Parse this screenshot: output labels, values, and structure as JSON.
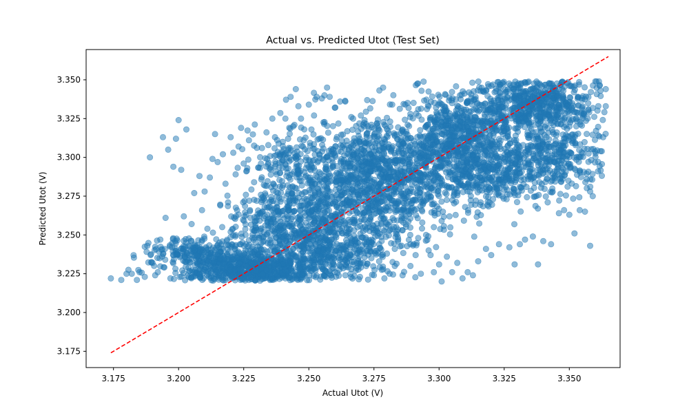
{
  "chart_data": {
    "type": "scatter",
    "title": "Actual vs. Predicted Utot (Test Set)",
    "xlabel": "Actual Utot (V)",
    "ylabel": "Predicted Utot (V)",
    "xlim": [
      3.1645,
      3.3695
    ],
    "ylim": [
      3.1645,
      3.3695
    ],
    "xticks": [
      3.175,
      3.2,
      3.225,
      3.25,
      3.275,
      3.3,
      3.325,
      3.35
    ],
    "yticks": [
      3.175,
      3.2,
      3.225,
      3.25,
      3.275,
      3.3,
      3.325,
      3.35
    ],
    "xtick_labels": [
      "3.175",
      "3.200",
      "3.225",
      "3.250",
      "3.275",
      "3.300",
      "3.325",
      "3.350"
    ],
    "ytick_labels": [
      "3.175",
      "3.200",
      "3.225",
      "3.250",
      "3.275",
      "3.300",
      "3.325",
      "3.350"
    ],
    "grid": false,
    "point_color": "#1f77b4",
    "point_alpha": 0.5,
    "reference_line": {
      "x": [
        3.174,
        3.365
      ],
      "y": [
        3.174,
        3.365
      ],
      "color": "#ff0000",
      "style": "dashed"
    },
    "series": [
      {
        "points": [
          [
            3.174,
            3.222
          ],
          [
            3.178,
            3.221
          ],
          [
            3.18,
            3.225
          ],
          [
            3.182,
            3.225
          ],
          [
            3.184,
            3.221
          ],
          [
            3.185,
            3.226
          ],
          [
            3.187,
            3.223
          ],
          [
            3.188,
            3.243
          ],
          [
            3.189,
            3.3
          ],
          [
            3.19,
            3.232
          ],
          [
            3.191,
            3.224
          ],
          [
            3.192,
            3.226
          ],
          [
            3.193,
            3.247
          ],
          [
            3.194,
            3.313
          ],
          [
            3.195,
            3.261
          ],
          [
            3.196,
            3.305
          ],
          [
            3.198,
            3.294
          ],
          [
            3.199,
            3.312
          ],
          [
            3.2,
            3.324
          ],
          [
            3.201,
            3.292
          ],
          [
            3.202,
            3.262
          ],
          [
            3.203,
            3.318
          ],
          [
            3.205,
            3.257
          ],
          [
            3.206,
            3.277
          ],
          [
            3.208,
            3.288
          ],
          [
            3.209,
            3.266
          ],
          [
            3.21,
            3.278
          ],
          [
            3.212,
            3.287
          ],
          [
            3.213,
            3.299
          ],
          [
            3.214,
            3.315
          ],
          [
            3.215,
            3.297
          ],
          [
            3.216,
            3.269
          ],
          [
            3.217,
            3.302
          ],
          [
            3.218,
            3.283
          ],
          [
            3.219,
            3.271
          ],
          [
            3.22,
            3.313
          ],
          [
            3.221,
            3.303
          ],
          [
            3.222,
            3.262
          ],
          [
            3.223,
            3.307
          ],
          [
            3.224,
            3.319
          ],
          [
            3.225,
            3.296
          ],
          [
            3.226,
            3.291
          ],
          [
            3.227,
            3.311
          ],
          [
            3.229,
            3.284
          ],
          [
            3.23,
            3.272
          ],
          [
            3.232,
            3.306
          ],
          [
            3.234,
            3.299
          ],
          [
            3.236,
            3.325
          ],
          [
            3.237,
            3.313
          ],
          [
            3.239,
            3.29
          ],
          [
            3.24,
            3.31
          ],
          [
            3.241,
            3.325
          ],
          [
            3.242,
            3.305
          ],
          [
            3.243,
            3.339
          ],
          [
            3.244,
            3.32
          ],
          [
            3.245,
            3.344
          ],
          [
            3.246,
            3.333
          ],
          [
            3.247,
            3.325
          ],
          [
            3.248,
            3.311
          ],
          [
            3.25,
            3.334
          ],
          [
            3.251,
            3.318
          ],
          [
            3.252,
            3.327
          ],
          [
            3.253,
            3.339
          ],
          [
            3.254,
            3.312
          ],
          [
            3.255,
            3.338
          ],
          [
            3.256,
            3.34
          ],
          [
            3.257,
            3.345
          ],
          [
            3.258,
            3.339
          ],
          [
            3.26,
            3.332
          ],
          [
            3.262,
            3.336
          ],
          [
            3.264,
            3.336
          ],
          [
            3.267,
            3.325
          ],
          [
            3.27,
            3.327
          ],
          [
            3.274,
            3.321
          ],
          [
            3.277,
            3.314
          ],
          [
            3.279,
            3.321
          ],
          [
            3.282,
            3.334
          ],
          [
            3.286,
            3.318
          ],
          [
            3.289,
            3.328
          ],
          [
            3.292,
            3.331
          ],
          [
            3.296,
            3.333
          ],
          [
            3.299,
            3.329
          ],
          [
            3.302,
            3.33
          ],
          [
            3.305,
            3.335
          ],
          [
            3.308,
            3.34
          ],
          [
            3.311,
            3.336
          ],
          [
            3.314,
            3.339
          ],
          [
            3.317,
            3.343
          ],
          [
            3.25,
            3.228
          ],
          [
            3.253,
            3.229
          ],
          [
            3.256,
            3.227
          ],
          [
            3.258,
            3.225
          ],
          [
            3.26,
            3.226
          ],
          [
            3.262,
            3.23
          ],
          [
            3.264,
            3.224
          ],
          [
            3.266,
            3.225
          ],
          [
            3.268,
            3.227
          ],
          [
            3.27,
            3.229
          ],
          [
            3.272,
            3.23
          ],
          [
            3.275,
            3.224
          ],
          [
            3.277,
            3.233
          ],
          [
            3.279,
            3.222
          ],
          [
            3.281,
            3.225
          ],
          [
            3.283,
            3.23
          ],
          [
            3.286,
            3.224
          ],
          [
            3.289,
            3.23
          ],
          [
            3.291,
            3.237
          ],
          [
            3.293,
            3.225
          ],
          [
            3.296,
            3.24
          ],
          [
            3.298,
            3.226
          ],
          [
            3.3,
            3.231
          ],
          [
            3.301,
            3.22
          ],
          [
            3.303,
            3.236
          ],
          [
            3.305,
            3.226
          ],
          [
            3.307,
            3.232
          ],
          [
            3.309,
            3.222
          ],
          [
            3.311,
            3.226
          ],
          [
            3.313,
            3.224
          ],
          [
            3.315,
            3.233
          ],
          [
            3.318,
            3.241
          ],
          [
            3.32,
            3.237
          ],
          [
            3.323,
            3.244
          ],
          [
            3.327,
            3.242
          ],
          [
            3.329,
            3.231
          ],
          [
            3.331,
            3.244
          ],
          [
            3.333,
            3.247
          ],
          [
            3.336,
            3.249
          ],
          [
            3.338,
            3.231
          ],
          [
            3.34,
            3.246
          ],
          [
            3.343,
            3.244
          ],
          [
            3.346,
            3.264
          ],
          [
            3.348,
            3.266
          ],
          [
            3.35,
            3.263
          ],
          [
            3.352,
            3.251
          ],
          [
            3.354,
            3.266
          ],
          [
            3.356,
            3.265
          ],
          [
            3.358,
            3.243
          ],
          [
            3.358,
            3.278
          ],
          [
            3.359,
            3.275
          ],
          [
            3.361,
            3.291
          ],
          [
            3.362,
            3.304
          ],
          [
            3.363,
            3.313
          ],
          [
            3.364,
            3.344
          ],
          [
            3.364,
            3.333
          ],
          [
            3.362,
            3.343
          ],
          [
            3.36,
            3.349
          ],
          [
            3.355,
            3.337
          ],
          [
            3.349,
            3.333
          ],
          [
            3.346,
            3.34
          ],
          [
            3.343,
            3.325
          ],
          [
            3.34,
            3.31
          ],
          [
            3.337,
            3.307
          ],
          [
            3.334,
            3.298
          ],
          [
            3.331,
            3.29
          ],
          [
            3.328,
            3.285
          ],
          [
            3.325,
            3.297
          ],
          [
            3.322,
            3.276
          ],
          [
            3.319,
            3.287
          ],
          [
            3.316,
            3.271
          ],
          [
            3.313,
            3.282
          ],
          [
            3.31,
            3.268
          ],
          [
            3.307,
            3.277
          ],
          [
            3.304,
            3.262
          ],
          [
            3.301,
            3.259
          ],
          [
            3.298,
            3.255
          ],
          [
            3.295,
            3.25
          ],
          [
            3.292,
            3.248
          ],
          [
            3.289,
            3.244
          ],
          [
            3.286,
            3.253
          ],
          [
            3.283,
            3.241
          ],
          [
            3.28,
            3.238
          ],
          [
            3.277,
            3.244
          ],
          [
            3.274,
            3.235
          ],
          [
            3.271,
            3.232
          ],
          [
            3.268,
            3.243
          ],
          [
            3.265,
            3.236
          ]
        ],
        "clusters": [
          {
            "cx": 3.218,
            "cy": 3.23,
            "sx": 0.012,
            "sy": 0.006,
            "n": 420
          },
          {
            "cx": 3.236,
            "cy": 3.228,
            "sx": 0.01,
            "sy": 0.005,
            "n": 380
          },
          {
            "cx": 3.205,
            "cy": 3.24,
            "sx": 0.008,
            "sy": 0.004,
            "n": 140
          },
          {
            "cx": 3.238,
            "cy": 3.255,
            "sx": 0.009,
            "sy": 0.012,
            "n": 320
          },
          {
            "cx": 3.252,
            "cy": 3.265,
            "sx": 0.008,
            "sy": 0.02,
            "n": 300
          },
          {
            "cx": 3.265,
            "cy": 3.262,
            "sx": 0.008,
            "sy": 0.018,
            "n": 300
          },
          {
            "cx": 3.272,
            "cy": 3.295,
            "sx": 0.009,
            "sy": 0.014,
            "n": 380
          },
          {
            "cx": 3.283,
            "cy": 3.278,
            "sx": 0.01,
            "sy": 0.02,
            "n": 380
          },
          {
            "cx": 3.298,
            "cy": 3.3,
            "sx": 0.012,
            "sy": 0.018,
            "n": 460
          },
          {
            "cx": 3.312,
            "cy": 3.318,
            "sx": 0.01,
            "sy": 0.012,
            "n": 420
          },
          {
            "cx": 3.32,
            "cy": 3.292,
            "sx": 0.011,
            "sy": 0.011,
            "n": 380
          },
          {
            "cx": 3.338,
            "cy": 3.335,
            "sx": 0.011,
            "sy": 0.009,
            "n": 560
          },
          {
            "cx": 3.345,
            "cy": 3.3,
            "sx": 0.01,
            "sy": 0.012,
            "n": 320
          },
          {
            "cx": 3.242,
            "cy": 3.295,
            "sx": 0.008,
            "sy": 0.012,
            "n": 170
          },
          {
            "cx": 3.262,
            "cy": 3.238,
            "sx": 0.01,
            "sy": 0.006,
            "n": 170
          }
        ]
      }
    ]
  }
}
